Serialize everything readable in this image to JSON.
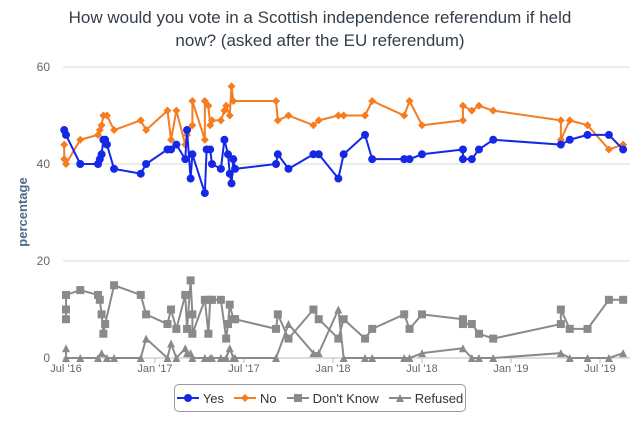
{
  "chart_data": {
    "type": "line",
    "title": "How would you vote in a Scottish independence referendum if held now? (asked after the EU referendum)",
    "title_lines": [
      "How would you vote in a Scottish independence referendum if held",
      "now? (asked after the EU referendum)"
    ],
    "xlabel": "",
    "ylabel": "percentage",
    "x_units": "decimal year",
    "xlim": [
      2016.49,
      2019.65
    ],
    "ylim": [
      0,
      60
    ],
    "y_ticks": [
      0,
      20,
      40,
      60
    ],
    "y_tick_labels": [
      "0",
      "20",
      "40",
      "60"
    ],
    "x_ticks": [
      2016.5,
      2017.0,
      2017.5,
      2018.0,
      2018.5,
      2019.0,
      2019.5
    ],
    "x_tick_labels": [
      "Jul '16",
      "Jan '17",
      "Jul '17",
      "Jan '18",
      "Jul '18",
      "Jan '19",
      "Jul '19"
    ],
    "grid": true,
    "legend_position": "bottom-center",
    "series": [
      {
        "name": "Yes",
        "color": "#1428e6",
        "marker": "circle",
        "x": [
          2016.49,
          2016.5,
          2016.58,
          2016.68,
          2016.69,
          2016.7,
          2016.71,
          2016.72,
          2016.73,
          2016.77,
          2016.92,
          2016.95,
          2017.07,
          2017.09,
          2017.12,
          2017.17,
          2017.18,
          2017.2,
          2017.21,
          2017.28,
          2017.29,
          2017.31,
          2017.32,
          2017.37,
          2017.39,
          2017.41,
          2017.42,
          2017.43,
          2017.44,
          2017.45,
          2017.68,
          2017.69,
          2017.75,
          2017.89,
          2017.92,
          2018.03,
          2018.06,
          2018.18,
          2018.22,
          2018.4,
          2018.43,
          2018.5,
          2018.73,
          2018.73,
          2018.78,
          2018.82,
          2018.9,
          2019.28,
          2019.33,
          2019.43,
          2019.55,
          2019.63
        ],
        "y": [
          47,
          46,
          40,
          40,
          41,
          42,
          45,
          45,
          44,
          39,
          38,
          40,
          43,
          43,
          44,
          41,
          47,
          37,
          42,
          34,
          43,
          43,
          40,
          39,
          45,
          42,
          38,
          36,
          41,
          39,
          40,
          42,
          39,
          42,
          42,
          37,
          42,
          46,
          41,
          41,
          41,
          42,
          43,
          41,
          41,
          43,
          45,
          44,
          45,
          46,
          46,
          43
        ]
      },
      {
        "name": "No",
        "color": "#f57c1f",
        "marker": "diamond",
        "x": [
          2016.49,
          2016.49,
          2016.5,
          2016.58,
          2016.68,
          2016.69,
          2016.7,
          2016.71,
          2016.73,
          2016.77,
          2016.92,
          2016.95,
          2017.07,
          2017.09,
          2017.12,
          2017.17,
          2017.18,
          2017.21,
          2017.21,
          2017.28,
          2017.28,
          2017.3,
          2017.31,
          2017.32,
          2017.37,
          2017.39,
          2017.4,
          2017.42,
          2017.43,
          2017.44,
          2017.68,
          2017.69,
          2017.75,
          2017.89,
          2017.92,
          2018.03,
          2018.06,
          2018.18,
          2018.22,
          2018.4,
          2018.43,
          2018.5,
          2018.73,
          2018.73,
          2018.78,
          2018.82,
          2018.9,
          2019.28,
          2019.28,
          2019.33,
          2019.43,
          2019.55,
          2019.63
        ],
        "y": [
          44,
          41,
          40,
          45,
          46,
          47,
          48,
          50,
          50,
          47,
          49,
          47,
          51,
          45,
          51,
          44,
          46,
          48,
          53,
          45,
          53,
          52,
          48,
          49,
          49,
          51,
          52,
          50,
          56,
          53,
          53,
          49,
          50,
          48,
          49,
          50,
          50,
          50,
          53,
          50,
          53,
          48,
          49,
          52,
          51,
          52,
          51,
          49,
          45,
          49,
          48,
          43,
          44
        ]
      },
      {
        "name": "Don't Know",
        "color": "#8a8a8a",
        "marker": "square",
        "x": [
          2016.5,
          2016.5,
          2016.5,
          2016.58,
          2016.68,
          2016.69,
          2016.7,
          2016.71,
          2016.72,
          2016.77,
          2016.92,
          2016.95,
          2017.07,
          2017.09,
          2017.12,
          2017.17,
          2017.18,
          2017.2,
          2017.21,
          2017.21,
          2017.28,
          2017.3,
          2017.31,
          2017.32,
          2017.37,
          2017.4,
          2017.41,
          2017.42,
          2017.44,
          2017.45,
          2017.68,
          2017.69,
          2017.75,
          2017.89,
          2017.92,
          2018.03,
          2018.06,
          2018.18,
          2018.22,
          2018.4,
          2018.43,
          2018.5,
          2018.73,
          2018.73,
          2018.78,
          2018.82,
          2018.9,
          2019.28,
          2019.28,
          2019.33,
          2019.43,
          2019.55,
          2019.63
        ],
        "y": [
          8,
          10,
          13,
          14,
          13,
          12,
          9,
          5,
          7,
          15,
          13,
          9,
          7,
          10,
          6,
          13,
          6,
          16,
          9,
          5,
          12,
          5,
          12,
          12,
          12,
          4,
          7,
          11,
          8,
          8,
          6,
          9,
          4,
          10,
          8,
          4,
          8,
          4,
          6,
          9,
          6,
          9,
          8,
          7,
          7,
          5,
          4,
          7,
          10,
          6,
          6,
          12,
          12
        ]
      },
      {
        "name": "Refused",
        "color": "#8a8a8a",
        "marker": "triangle",
        "x": [
          2016.5,
          2016.5,
          2016.58,
          2016.68,
          2016.7,
          2016.73,
          2016.77,
          2016.92,
          2016.95,
          2017.07,
          2017.09,
          2017.12,
          2017.17,
          2017.18,
          2017.2,
          2017.21,
          2017.28,
          2017.31,
          2017.32,
          2017.37,
          2017.4,
          2017.42,
          2017.44,
          2017.45,
          2017.68,
          2017.75,
          2017.89,
          2017.92,
          2018.03,
          2018.06,
          2018.18,
          2018.22,
          2018.4,
          2018.43,
          2018.5,
          2018.73,
          2018.78,
          2018.82,
          2018.9,
          2019.28,
          2019.33,
          2019.43,
          2019.55,
          2019.63
        ],
        "y": [
          2,
          0,
          0,
          0,
          1,
          0,
          0,
          0,
          4,
          0,
          3,
          0,
          2,
          1,
          1,
          0,
          0,
          0,
          0,
          0,
          0,
          2,
          0,
          0,
          0,
          7,
          1,
          1,
          10,
          0,
          0,
          0,
          0,
          0,
          1,
          2,
          0,
          0,
          0,
          1,
          0,
          0,
          0,
          1
        ]
      }
    ]
  }
}
